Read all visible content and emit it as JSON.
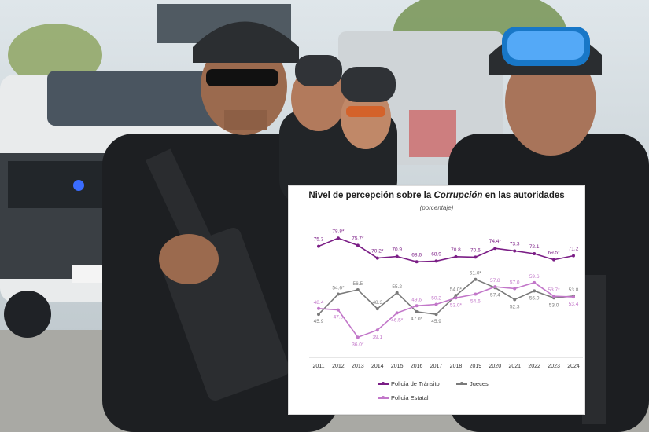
{
  "colors": {
    "policia_transito": "#7b1e86",
    "jueces": "#7a7a7a",
    "policia_estatal": "#c277c9"
  },
  "chart_data": {
    "type": "line",
    "title_prefix": "Nivel de percepción sobre la ",
    "title_emphasis": "Corrupción",
    "title_suffix": " en las autoridades",
    "subtitle": "(porcentaje)",
    "x": [
      "2011",
      "2012",
      "2013",
      "2014",
      "2015",
      "2016",
      "2017",
      "2018",
      "2019",
      "2020",
      "2021",
      "2022",
      "2023",
      "2024"
    ],
    "ylim": [
      30,
      85
    ],
    "grid": false,
    "legend_placement": "bottom",
    "series": [
      {
        "name": "Policía de Tránsito",
        "color": "#7b1e86",
        "values": [
          75.3,
          78.8,
          75.7,
          70.2,
          70.9,
          68.6,
          68.9,
          70.8,
          70.6,
          74.4,
          73.3,
          72.1,
          69.5,
          71.2
        ],
        "labels": [
          "75.3",
          "78.8*",
          "75.7*",
          "70.2*",
          "70.9",
          "68.6",
          "68.9",
          "70.8",
          "70.6",
          "74.4*",
          "73.3",
          "72.1",
          "69.5*",
          "71.2"
        ]
      },
      {
        "name": "Jueces",
        "color": "#7a7a7a",
        "values": [
          45.9,
          54.6,
          56.5,
          48.3,
          55.2,
          47.0,
          45.9,
          54.0,
          61.0,
          57.4,
          52.3,
          56.0,
          53.0,
          53.8
        ],
        "labels": [
          "45.9",
          "54.6*",
          "56.5",
          "48.3",
          "55.2",
          "47.0*",
          "45.9",
          "54.0*",
          "61.0*",
          "57.4",
          "52.3",
          "56.0",
          "53.0",
          "53.8"
        ]
      },
      {
        "name": "Policía Estatal",
        "color": "#c277c9",
        "values": [
          48.4,
          47.8,
          36.0,
          39.1,
          46.5,
          49.6,
          50.2,
          53.0,
          54.6,
          57.8,
          57.0,
          59.6,
          53.7,
          53.4
        ],
        "labels": [
          "48.4",
          "47.8",
          "36.0*",
          "39.1",
          "46.5*",
          "49.6",
          "50.2",
          "53.0*",
          "54.6",
          "57.8",
          "57.0",
          "59.6",
          "53.7*",
          "53.4"
        ]
      }
    ]
  }
}
